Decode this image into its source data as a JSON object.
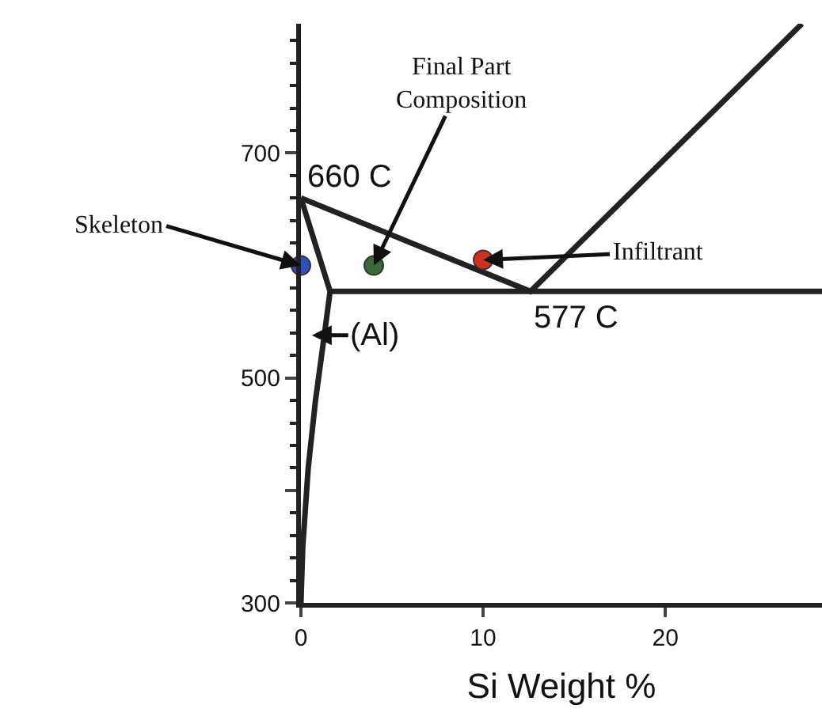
{
  "chart_data": {
    "type": "line",
    "xlabel": "Si Weight %",
    "xlim": [
      0,
      28.6
    ],
    "xticks": [
      0,
      10,
      20
    ],
    "ylim": [
      300,
      815
    ],
    "yticks": [
      300,
      {
        "value": 400,
        "label": null
      },
      500,
      {
        "value": 600,
        "label": null
      },
      700
    ],
    "series": [
      {
        "color": "#222222",
        "marker": "none",
        "x": [
          0,
          12.6,
          27.5
        ],
        "values": [
          660,
          577,
          815
        ]
      },
      {
        "color": "#222222",
        "marker": "none",
        "x": [
          1.6,
          28.6
        ],
        "values": [
          577,
          577
        ]
      },
      {
        "color": "#222222",
        "marker": "none",
        "x": [
          0,
          1.6,
          1.3,
          0.8,
          0.4,
          0.1,
          0
        ],
        "values": [
          660,
          577,
          540,
          480,
          420,
          350,
          300
        ]
      },
      {
        "type": "scatter",
        "marker": "circle",
        "x": [
          0,
          4,
          10
        ],
        "values": [
          600,
          600,
          605
        ],
        "colors": [
          "#3050c0",
          "#3a6a3a",
          "#d03020"
        ]
      }
    ],
    "annotations": [
      {
        "text": "660 C",
        "x": 0,
        "y": 660
      },
      {
        "text": "577 C",
        "x": 12.6,
        "y": 577
      },
      {
        "text": "(Al)",
        "x": 0.6,
        "y": 538
      },
      {
        "text": "Skeleton",
        "x": 0,
        "y": 600
      },
      {
        "text": "Final Part\nComposition",
        "x": 4,
        "y": 600
      },
      {
        "text": "Infiltrant",
        "x": 10,
        "y": 605
      }
    ]
  }
}
